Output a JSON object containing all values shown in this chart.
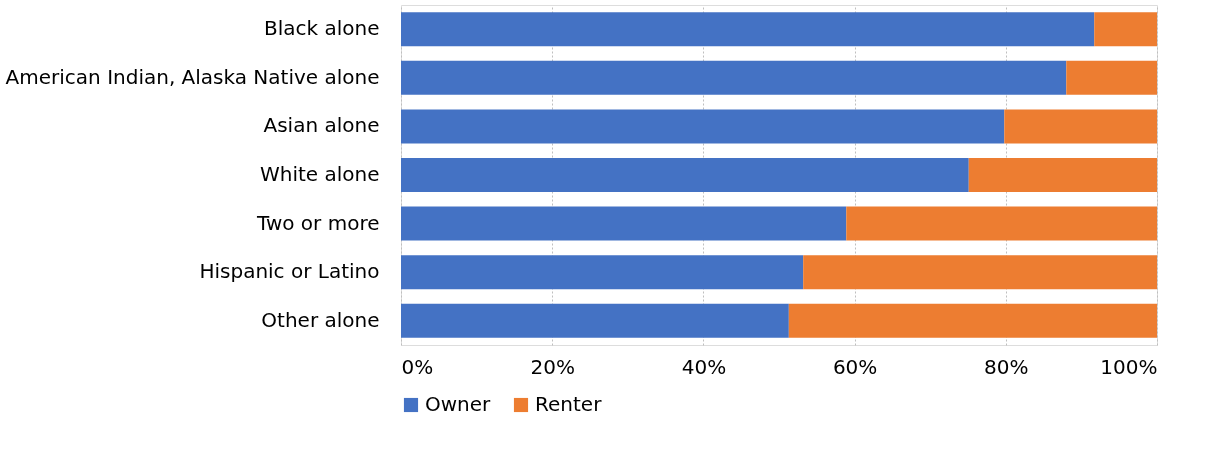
{
  "chart_data": {
    "type": "bar",
    "orientation": "horizontal",
    "stacked": true,
    "categories": [
      "Black alone",
      "American Indian, Alaska Native alone",
      "Asian alone",
      "White alone",
      "Two or more",
      "Hispanic or Latino",
      "Other alone"
    ],
    "series": [
      {
        "name": "Owner",
        "color": "#4472c4",
        "values": [
          91.7,
          88.0,
          79.8,
          75.1,
          58.9,
          53.2,
          51.3
        ]
      },
      {
        "name": "Renter",
        "color": "#ed7d31",
        "values": [
          8.3,
          12.0,
          20.2,
          24.9,
          41.1,
          46.8,
          48.7
        ]
      }
    ],
    "xlim": [
      0,
      100
    ],
    "xticks": [
      {
        "value": 0,
        "label": "0%"
      },
      {
        "value": 20,
        "label": "20%"
      },
      {
        "value": 40,
        "label": "40%"
      },
      {
        "value": 60,
        "label": "60%"
      },
      {
        "value": 80,
        "label": "80%"
      },
      {
        "value": 100,
        "label": "100%"
      }
    ],
    "grid": "x",
    "legend": "bottom"
  }
}
